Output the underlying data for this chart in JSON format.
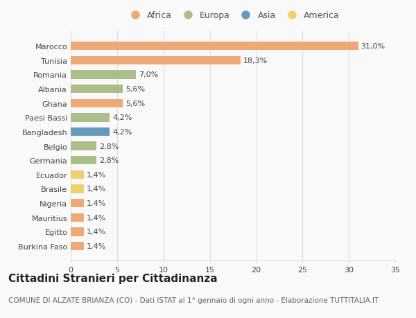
{
  "categories": [
    "Burkina Faso",
    "Egitto",
    "Mauritius",
    "Nigeria",
    "Brasile",
    "Ecuador",
    "Germania",
    "Belgio",
    "Bangladesh",
    "Paesi Bassi",
    "Ghana",
    "Albania",
    "Romania",
    "Tunisia",
    "Marocco"
  ],
  "values": [
    1.4,
    1.4,
    1.4,
    1.4,
    1.4,
    1.4,
    2.8,
    2.8,
    4.2,
    4.2,
    5.6,
    5.6,
    7.0,
    18.3,
    31.0
  ],
  "labels": [
    "1,4%",
    "1,4%",
    "1,4%",
    "1,4%",
    "1,4%",
    "1,4%",
    "2,8%",
    "2,8%",
    "4,2%",
    "4,2%",
    "5,6%",
    "5,6%",
    "7,0%",
    "18,3%",
    "31,0%"
  ],
  "colors": [
    "#EDAA78",
    "#EDAA78",
    "#EDAA78",
    "#EDAA78",
    "#F0CF6E",
    "#F0CF6E",
    "#ABBE8A",
    "#ABBE8A",
    "#6699BB",
    "#ABBE8A",
    "#EDAA78",
    "#ABBE8A",
    "#ABBE8A",
    "#EDAA78",
    "#EDAA78"
  ],
  "legend_labels": [
    "Africa",
    "Europa",
    "Asia",
    "America"
  ],
  "legend_colors": [
    "#EDAA78",
    "#ABBE8A",
    "#6699BB",
    "#F0CF6E"
  ],
  "title": "Cittadini Stranieri per Cittadinanza",
  "subtitle": "COMUNE DI ALZATE BRIANZA (CO) - Dati ISTAT al 1° gennaio di ogni anno - Elaborazione TUTTITALIA.IT",
  "xlim": [
    0,
    35
  ],
  "xticks": [
    0,
    5,
    10,
    15,
    20,
    25,
    30,
    35
  ],
  "background_color": "#f9f9f9",
  "grid_color": "#dddddd",
  "title_fontsize": 11,
  "subtitle_fontsize": 7.5,
  "label_fontsize": 8,
  "tick_fontsize": 8,
  "legend_fontsize": 9
}
